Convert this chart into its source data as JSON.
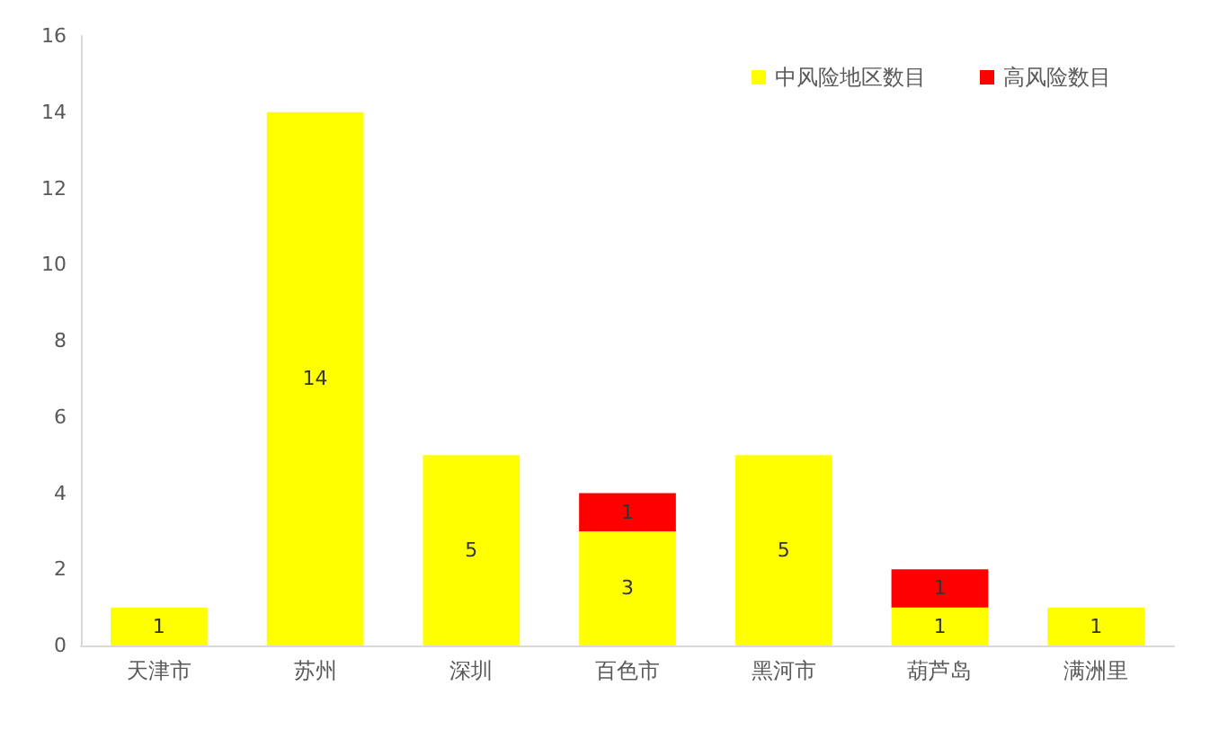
{
  "chart_data": {
    "type": "bar",
    "stacked": true,
    "categories": [
      "天津市",
      "苏州",
      "深圳",
      "百色市",
      "黑河市",
      "葫芦岛",
      "满洲里"
    ],
    "series": [
      {
        "name": "中风险地区数目",
        "color": "#ffff00",
        "values": [
          1,
          14,
          5,
          3,
          5,
          1,
          1
        ]
      },
      {
        "name": "高风险数目",
        "color": "#ff0000",
        "values": [
          null,
          null,
          null,
          1,
          null,
          1,
          null
        ]
      }
    ],
    "ylim": [
      0,
      16
    ],
    "yticks": [
      0,
      2,
      4,
      6,
      8,
      10,
      12,
      14,
      16
    ],
    "grid": false,
    "legend": "top right",
    "data_labels": true
  }
}
